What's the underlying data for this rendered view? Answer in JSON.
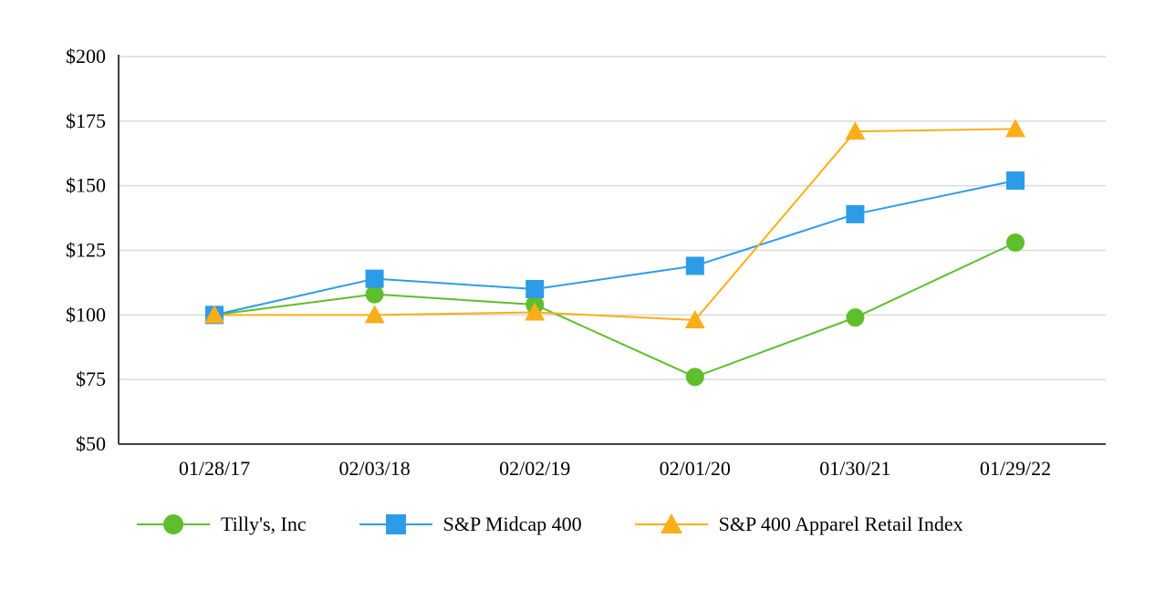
{
  "chart_data": {
    "type": "line",
    "title": "",
    "categories": [
      "01/28/17",
      "02/03/18",
      "02/02/19",
      "02/01/20",
      "01/30/21",
      "01/29/22"
    ],
    "series": [
      {
        "name": "Tilly's, Inc",
        "marker": "circle",
        "color": "#5FBE2B",
        "values": [
          100,
          108,
          104,
          76,
          99,
          128
        ]
      },
      {
        "name": "S&P Midcap 400",
        "marker": "square",
        "color": "#2D9CE8",
        "values": [
          100,
          114,
          110,
          119,
          139,
          152
        ]
      },
      {
        "name": "S&P 400 Apparel Retail Index",
        "marker": "triangle",
        "color": "#FBAE17",
        "values": [
          100,
          100,
          101,
          98,
          171,
          172
        ]
      }
    ],
    "y_ticks": [
      50,
      75,
      100,
      125,
      150,
      175,
      200
    ],
    "y_tick_prefix": "$",
    "ylim": [
      50,
      200
    ],
    "grid": true,
    "legend_position": "bottom"
  },
  "colors": {
    "axis": "#404040",
    "grid": "#d9d9d9",
    "text": "#000000",
    "background": "#ffffff"
  }
}
